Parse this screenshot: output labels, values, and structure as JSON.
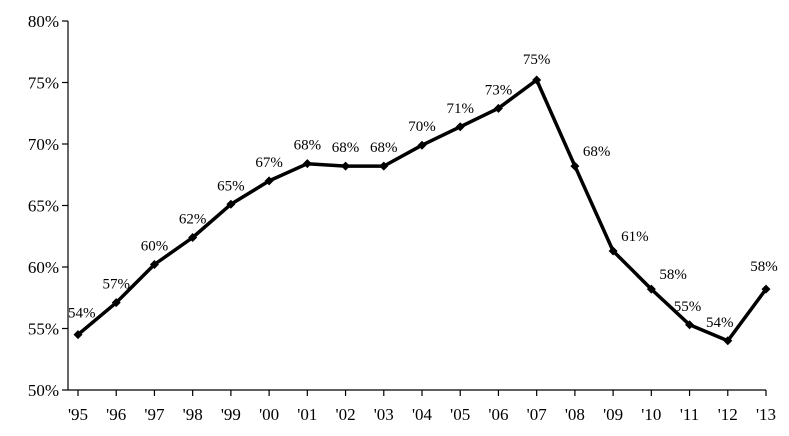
{
  "chart_data": {
    "type": "line",
    "title": "",
    "xlabel": "",
    "ylabel": "",
    "ylim": [
      0.5,
      0.8
    ],
    "y_ticks": [
      0.5,
      0.55,
      0.6,
      0.65,
      0.7,
      0.75,
      0.8
    ],
    "y_tick_labels": [
      "50%",
      "55%",
      "60%",
      "65%",
      "70%",
      "75%",
      "80%"
    ],
    "grid": false,
    "legend": "none",
    "line_color": "#000000",
    "categories": [
      "'95",
      "'96",
      "'97",
      "'98",
      "'99",
      "'00",
      "'01",
      "'02",
      "'03",
      "'04",
      "'05",
      "'06",
      "'07",
      "'08",
      "'09",
      "'10",
      "'11",
      "'12",
      "'13"
    ],
    "series": [
      {
        "values": [
          0.545,
          0.571,
          0.602,
          0.624,
          0.651,
          0.67,
          0.684,
          0.682,
          0.682,
          0.699,
          0.714,
          0.729,
          0.752,
          0.682,
          0.613,
          0.582,
          0.553,
          0.54,
          0.582
        ],
        "labels": [
          "54%",
          "57%",
          "60%",
          "62%",
          "65%",
          "67%",
          "68%",
          "68%",
          "68%",
          "70%",
          "71%",
          "73%",
          "75%",
          "68%",
          "61%",
          "58%",
          "55%",
          "54%",
          "58%"
        ]
      }
    ]
  }
}
